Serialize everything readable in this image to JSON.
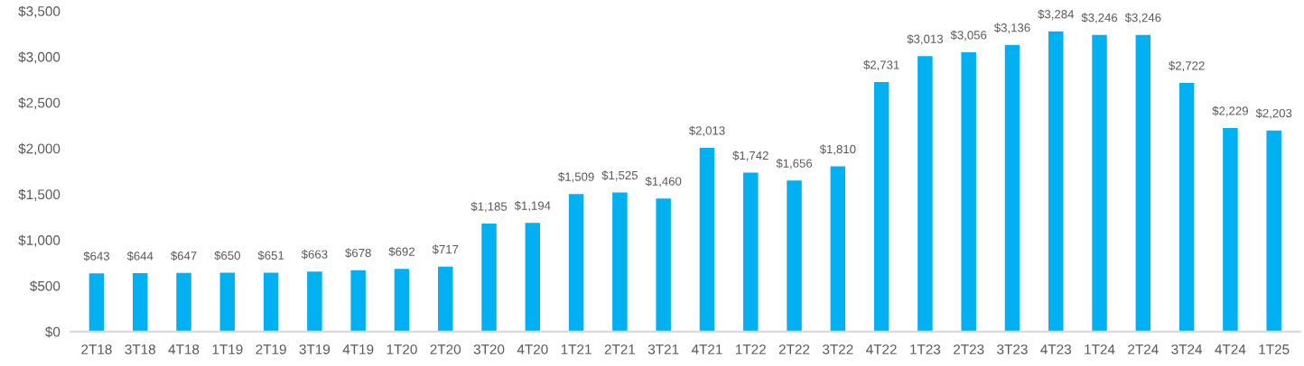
{
  "chart_data": {
    "type": "bar",
    "categories": [
      "2T18",
      "3T18",
      "4T18",
      "1T19",
      "2T19",
      "3T19",
      "4T19",
      "1T20",
      "2T20",
      "3T20",
      "4T20",
      "1T21",
      "2T21",
      "3T21",
      "4T21",
      "1T22",
      "2T22",
      "3T22",
      "4T22",
      "1T23",
      "2T23",
      "3T23",
      "4T23",
      "1T24",
      "2T24",
      "3T24",
      "4T24",
      "1T25"
    ],
    "values": [
      643,
      644,
      647,
      650,
      651,
      663,
      678,
      692,
      717,
      1185,
      1194,
      1509,
      1525,
      1460,
      2013,
      1742,
      1656,
      1810,
      2731,
      3013,
      3056,
      3136,
      3284,
      3246,
      3246,
      2722,
      2229,
      2203
    ],
    "value_labels": [
      "$643",
      "$644",
      "$647",
      "$650",
      "$651",
      "$663",
      "$678",
      "$692",
      "$717",
      "$1,185",
      "$1,194",
      "$1,509",
      "$1,525",
      "$1,460",
      "$2,013",
      "$1,742",
      "$1,656",
      "$1,810",
      "$2,731",
      "$3,013",
      "$3,056",
      "$3,136",
      "$3,284",
      "$3,246",
      "$3,246",
      "$2,722",
      "$2,229",
      "$2,203"
    ],
    "color": "#00b0f0",
    "ylim": [
      0,
      3500
    ],
    "yticks": [
      {
        "value": 0,
        "label": "$0"
      },
      {
        "value": 500,
        "label": "$500"
      },
      {
        "value": 1000,
        "label": "$1,000"
      },
      {
        "value": 1500,
        "label": "$1,500"
      },
      {
        "value": 2000,
        "label": "$2,000"
      },
      {
        "value": 2500,
        "label": "$2,500"
      },
      {
        "value": 3000,
        "label": "$3,000"
      },
      {
        "value": 3500,
        "label": "$3,500"
      }
    ],
    "grid": false
  }
}
